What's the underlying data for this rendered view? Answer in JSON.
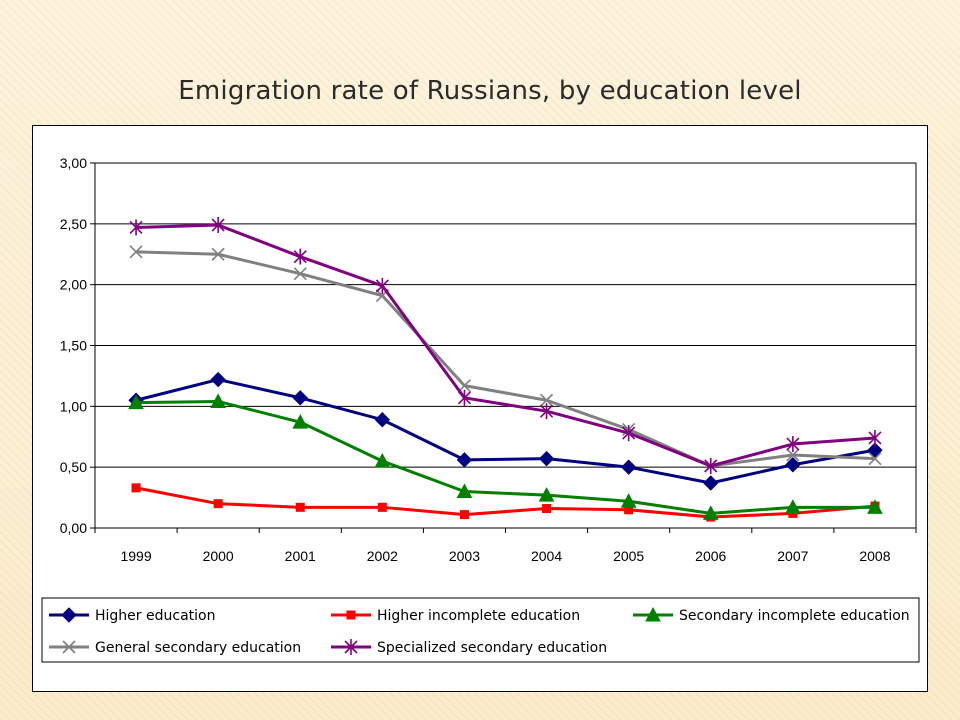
{
  "slide": {
    "title": "Emigration rate of Russians, by education level"
  },
  "chart_data": {
    "type": "line",
    "title": "",
    "xlabel": "",
    "ylabel": "",
    "x": [
      "1999",
      "2000",
      "2001",
      "2002",
      "2003",
      "2004",
      "2005",
      "2006",
      "2007",
      "2008"
    ],
    "ylim": [
      0,
      3
    ],
    "yticks": [
      "0,00",
      "0,50",
      "1,00",
      "1,50",
      "2,00",
      "2,50",
      "3,00"
    ],
    "grid": "horizontal",
    "legend_position": "bottom",
    "series": [
      {
        "name": "Higher education",
        "color": "#000080",
        "marker": "diamond",
        "values": [
          1.05,
          1.22,
          1.07,
          0.89,
          0.56,
          0.57,
          0.5,
          0.37,
          0.52,
          0.64
        ]
      },
      {
        "name": "Higher incomplete education",
        "color": "#ff0000",
        "marker": "square",
        "values": [
          0.33,
          0.2,
          0.17,
          0.17,
          0.11,
          0.16,
          0.15,
          0.09,
          0.12,
          0.18
        ]
      },
      {
        "name": "Secondary incomplete education",
        "color": "#008000",
        "marker": "triangle",
        "values": [
          1.03,
          1.04,
          0.87,
          0.55,
          0.3,
          0.27,
          0.22,
          0.12,
          0.17,
          0.17
        ]
      },
      {
        "name": "General secondary education",
        "color": "#808080",
        "marker": "x",
        "values": [
          2.27,
          2.25,
          2.09,
          1.91,
          1.17,
          1.05,
          0.81,
          0.51,
          0.6,
          0.57
        ]
      },
      {
        "name": "Specialized secondary education",
        "color": "#800080",
        "marker": "star",
        "values": [
          2.47,
          2.49,
          2.23,
          1.99,
          1.07,
          0.96,
          0.78,
          0.51,
          0.69,
          0.74
        ]
      }
    ]
  }
}
